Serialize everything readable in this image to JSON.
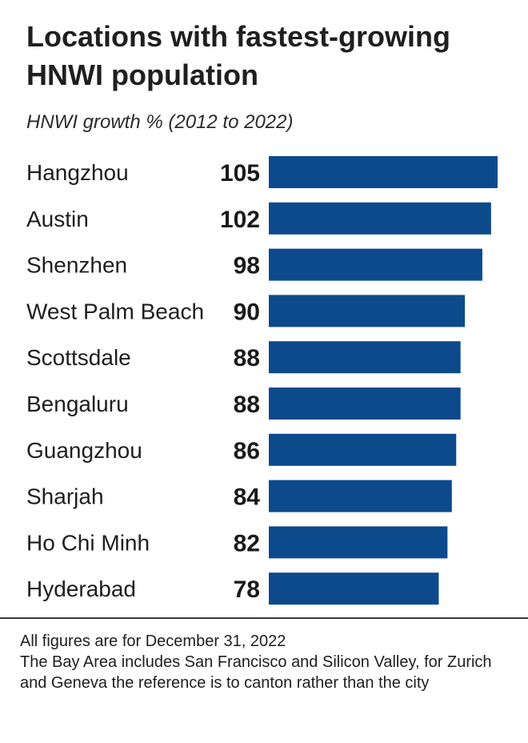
{
  "header": {
    "title": "Locations with fastest-growing HNWI population",
    "subtitle": "HNWI growth % (2012 to 2022)"
  },
  "chart_data": {
    "type": "bar",
    "orientation": "horizontal",
    "title": "Locations with fastest-growing HNWI population",
    "subtitle": "HNWI growth % (2012 to 2022)",
    "categories": [
      "Hangzhou",
      "Austin",
      "Shenzhen",
      "West Palm Beach",
      "Scottsdale",
      "Bengaluru",
      "Guangzhou",
      "Sharjah",
      "Ho Chi Minh",
      "Hyderabad"
    ],
    "values": [
      105,
      102,
      98,
      90,
      88,
      88,
      86,
      84,
      82,
      78
    ],
    "bar_color": "#0d4a8c",
    "xlim": [
      0,
      105
    ],
    "grid": false,
    "data_labels": true
  },
  "footer": {
    "note1": "All figures are for December 31, 2022",
    "note2": "The Bay Area includes San Francisco and Silicon Valley, for Zurich and Geneva the reference is to canton rather than the city"
  },
  "colors": {
    "bar": "#0d4a8c",
    "text": "#1a1a1a",
    "rule": "#3a3a3a"
  }
}
